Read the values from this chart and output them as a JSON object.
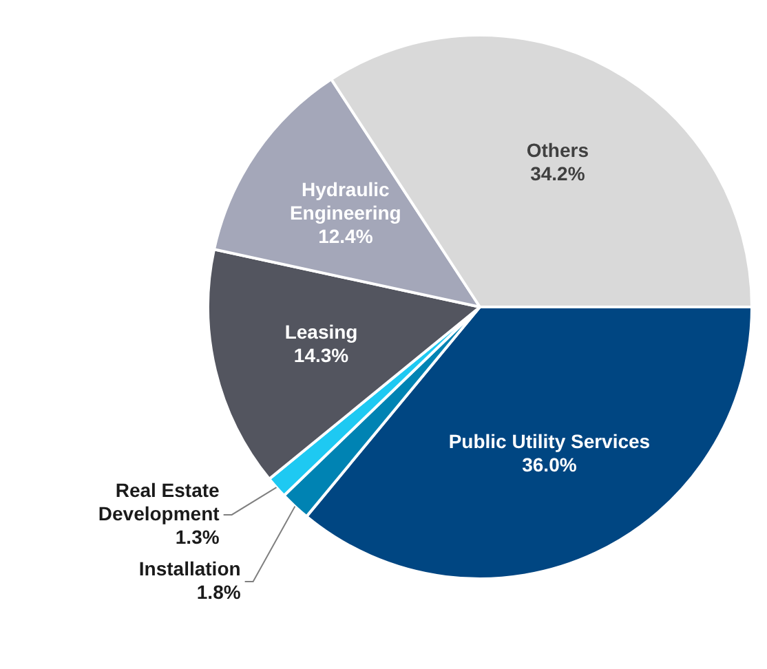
{
  "chart_data": {
    "type": "pie",
    "categories": [
      "Public Utility Services",
      "Installation",
      "Real Estate Development",
      "Leasing",
      "Hydraulic Engineering",
      "Others"
    ],
    "values": [
      36.0,
      1.8,
      1.3,
      14.3,
      12.4,
      34.2
    ],
    "value_labels": [
      "36.0%",
      "1.8%",
      "1.3%",
      "14.3%",
      "12.4%",
      "34.2%"
    ],
    "colors": [
      "#004682",
      "#0083b3",
      "#1ec9f2",
      "#53555f",
      "#a4a7b9",
      "#d9d9d9"
    ],
    "legend": false
  }
}
